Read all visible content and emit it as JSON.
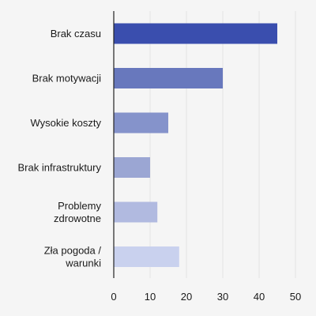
{
  "chart_data": {
    "type": "bar",
    "orientation": "horizontal",
    "title": "",
    "xlabel": "",
    "ylabel": "",
    "categories": [
      [
        "Brak czasu"
      ],
      [
        "Brak motywacji"
      ],
      [
        "Wysokie koszty"
      ],
      [
        "Brak infrastruktury"
      ],
      [
        "Problemy",
        "zdrowotne"
      ],
      [
        "Zła pogoda /",
        "warunki"
      ]
    ],
    "values": [
      45,
      30,
      15,
      10,
      12,
      18
    ],
    "colors": [
      "#3a4eae",
      "#6878bd",
      "#8593cb",
      "#9ba6d3",
      "#b1bae0",
      "#c9d1ee"
    ],
    "xlim": [
      0,
      50
    ],
    "x_ticks": [
      0,
      10,
      20,
      30,
      40,
      50
    ],
    "grid": "vertical",
    "legend": "none"
  }
}
